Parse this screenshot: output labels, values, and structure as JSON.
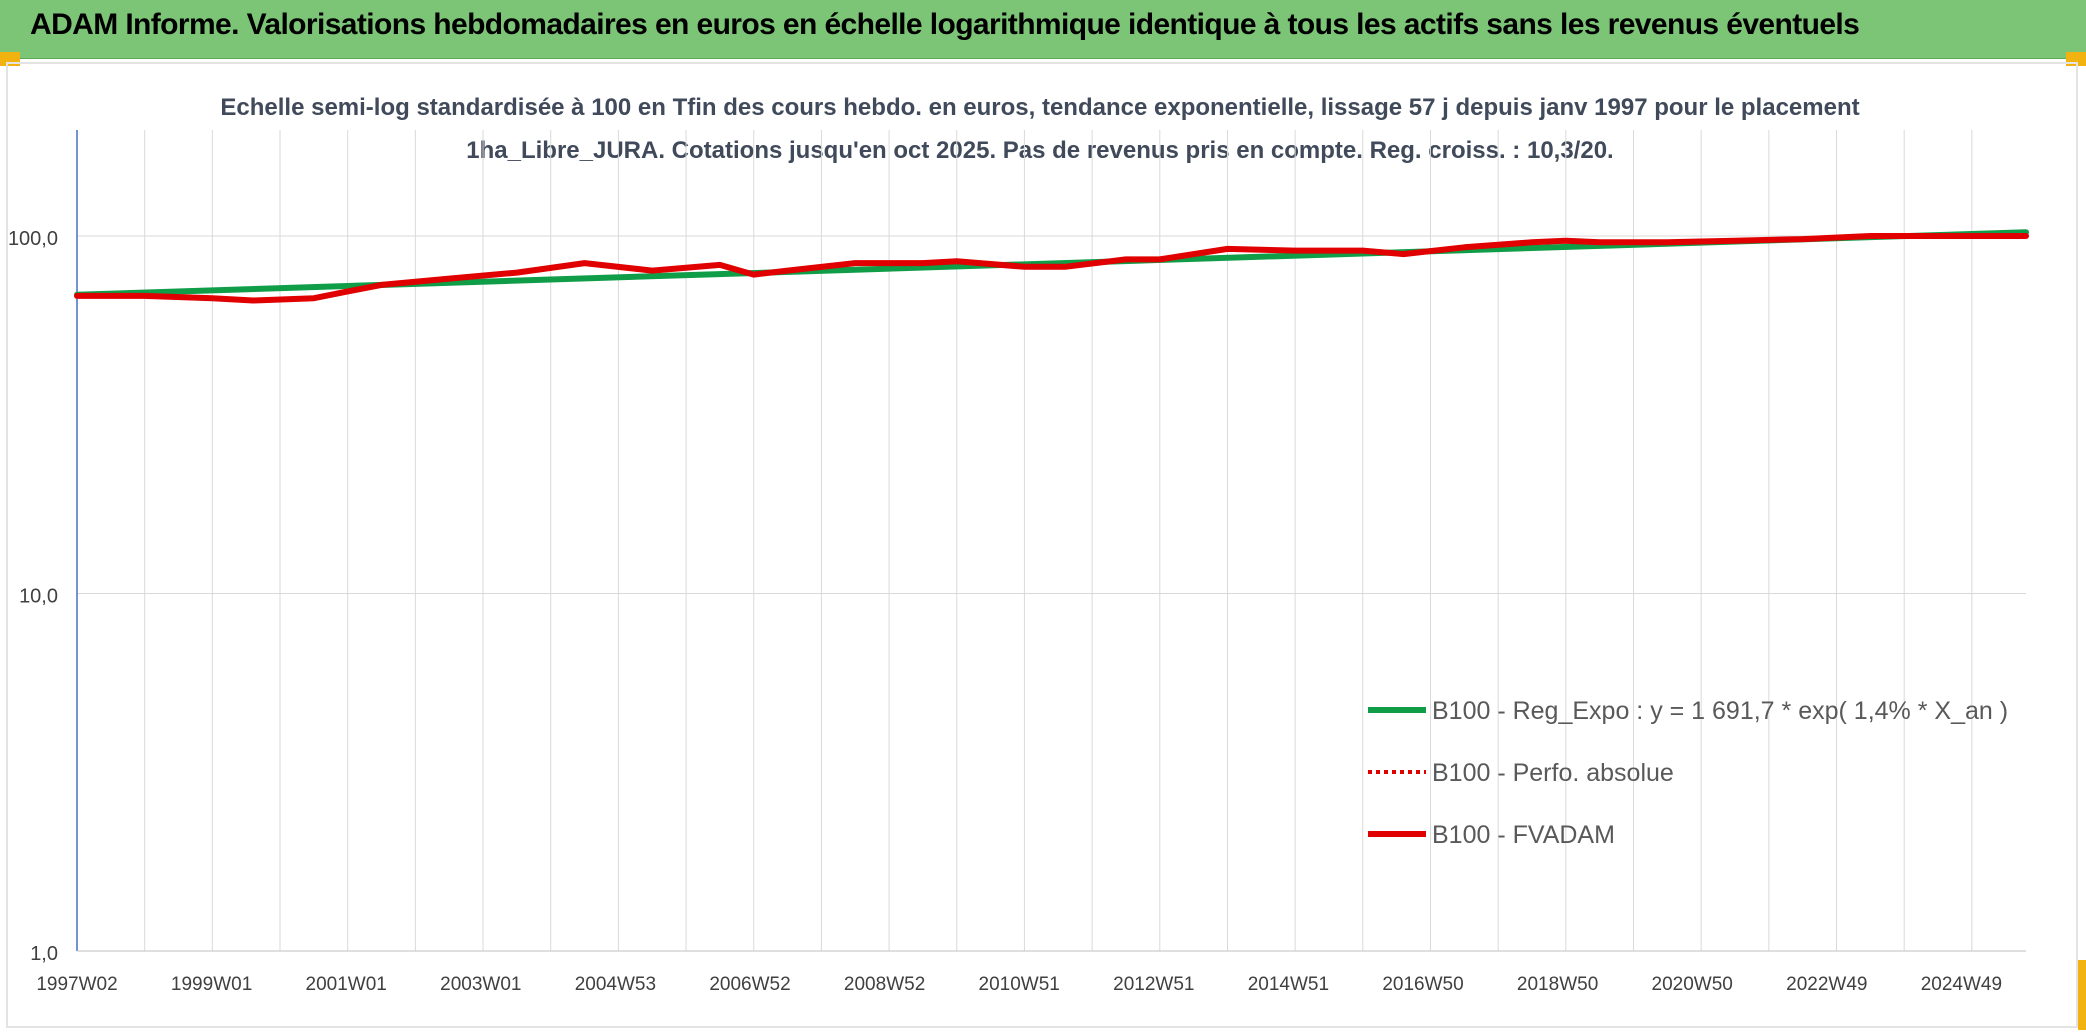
{
  "header": {
    "title": "ADAM Informe. Valorisations hebdomadaires en euros en échelle logarithmique identique à tous les actifs sans les revenus éventuels"
  },
  "chart_data": {
    "type": "line",
    "title": "Echelle semi-log standardisée à 100 en Tfin des cours hebdo. en euros, tendance exponentielle, lissage 57 j depuis janv 1997 pour le placement 1ha_Libre_JURA. Cotations jusqu'en oct 2025. Pas de revenus pris en compte. Reg. croiss. : 10,3/20.",
    "y_scale": "log",
    "ylim": [
      1,
      100
    ],
    "y_ticks": [
      "100,0",
      "10,0",
      "1,0"
    ],
    "y_tick_values": [
      100,
      10,
      1
    ],
    "x_ticks": [
      "1997W02",
      "1999W01",
      "2001W01",
      "2003W01",
      "2004W53",
      "2006W52",
      "2008W52",
      "2010W51",
      "2012W51",
      "2014W51",
      "2016W50",
      "2018W50",
      "2020W50",
      "2022W49",
      "2024W49"
    ],
    "x_range": [
      1997.0,
      2025.8
    ],
    "grid": true,
    "legend_position": "bottom-right",
    "colors": {
      "regression": "#0f9d48",
      "perf": "#e00000",
      "fvadam": "#e00000",
      "grid": "#d9d9d9",
      "axis": "#4472c4"
    },
    "series": [
      {
        "name": "B100 - Reg_Expo : y = 1 691,7 * exp( 1,4% *  X_an )",
        "style": "solid-green",
        "x": [
          1997.0,
          2025.8
        ],
        "y": [
          68.5,
          102.5
        ]
      },
      {
        "name": "B100 - Perfo. absolue",
        "style": "dotted-red",
        "x": [],
        "y": []
      },
      {
        "name": "B100 - FVADAM",
        "style": "solid-red",
        "x": [
          1997.0,
          1998.0,
          1999.0,
          1999.6,
          2000.5,
          2001.0,
          2001.5,
          2002.5,
          2003.5,
          2004.5,
          2005.5,
          2006.5,
          2007.0,
          2007.5,
          2008.5,
          2009.5,
          2010.0,
          2011.0,
          2011.6,
          2012.5,
          2013.0,
          2013.5,
          2014.0,
          2015.0,
          2016.0,
          2016.6,
          2017.5,
          2018.5,
          2019.0,
          2019.5,
          2020.5,
          2021.5,
          2022.5,
          2023.5,
          2024.5,
          2025.8
        ],
        "y": [
          68,
          68,
          67,
          66,
          67,
          70,
          73,
          76,
          79,
          84,
          80,
          83,
          78,
          80,
          84,
          84,
          85,
          82,
          82,
          86,
          86,
          89,
          92,
          91,
          91,
          89,
          93,
          96,
          97,
          96,
          96,
          97,
          98,
          100,
          100,
          100
        ]
      }
    ]
  }
}
